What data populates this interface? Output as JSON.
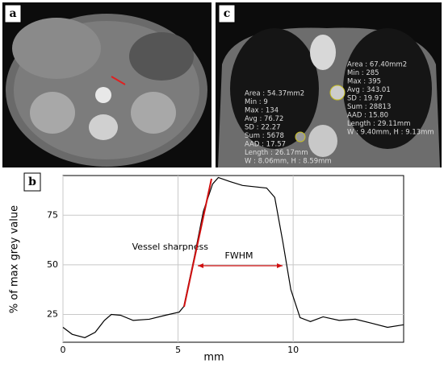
{
  "panels": {
    "a": "a",
    "b": "b",
    "c": "c"
  },
  "ct_left": [
    "Area : 54.37mm2",
    "Min : 9",
    "Max : 134",
    "Avg : 76.72",
    "SD : 22.27",
    "Sum : 5678",
    "AAD : 17.57",
    "Length : 26.17mm",
    "W : 8.06mm, H : 8.59mm"
  ],
  "ct_right": [
    "Area : 67.40mm2",
    "Min : 285",
    "Max : 395",
    "Avg : 343.01",
    "SD : 19.97",
    "Sum : 28813",
    "AAD : 15.80",
    "Length : 29.11mm",
    "W : 9.40mm, H : 9.13mm"
  ],
  "chart_data": {
    "type": "line",
    "x_label": "mm",
    "y_label": "% of max grey value",
    "annotations": [
      "Vessel sharpness",
      "FWHM"
    ],
    "x": [
      0,
      0.4,
      0.95,
      1.4,
      1.8,
      2.1,
      2.5,
      3.05,
      3.75,
      4.45,
      5.05,
      5.25,
      5.7,
      6.1,
      6.5,
      6.75,
      7.25,
      7.8,
      8.85,
      9.2,
      9.55,
      9.9,
      10.3,
      10.75,
      11.3,
      12.0,
      12.7,
      13.4,
      14.1,
      14.8
    ],
    "values": [
      18.5,
      15,
      13.3,
      16,
      22,
      25,
      24.6,
      22,
      22.6,
      24.6,
      26.2,
      29,
      53.6,
      77,
      90.7,
      94,
      92,
      90,
      88.7,
      84,
      61.7,
      37.5,
      23.4,
      21.4,
      23.8,
      22,
      22.6,
      20.6,
      18.5,
      19.8
    ],
    "color": "#000000",
    "xlim": [
      0,
      14.8
    ],
    "ylim": [
      11,
      95
    ],
    "xticks": [
      0,
      5,
      10
    ],
    "yticks": [
      25,
      50,
      75
    ],
    "grid": true
  }
}
